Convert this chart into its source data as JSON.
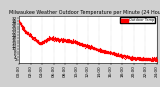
{
  "title": "Milwaukee Weather Outdoor Temperature per Minute (24 Hours)",
  "background_color": "#d0d0d0",
  "plot_bg_color": "#ffffff",
  "dot_color": "#ff0000",
  "dot_size": 0.8,
  "x_start": 0,
  "x_end": 1440,
  "y_min": 0,
  "y_max": 34,
  "y_ticks": [
    2,
    4,
    6,
    8,
    10,
    12,
    14,
    16,
    18,
    20,
    22,
    24,
    26,
    28,
    30,
    32
  ],
  "x_ticks": [
    0,
    120,
    240,
    360,
    480,
    600,
    720,
    840,
    960,
    1080,
    1200,
    1320,
    1440
  ],
  "grid_color": "#aaaaaa",
  "tick_fontsize": 3.0,
  "title_fontsize": 3.5,
  "legend_label": "Outdoor Temp",
  "legend_color": "#ff0000"
}
